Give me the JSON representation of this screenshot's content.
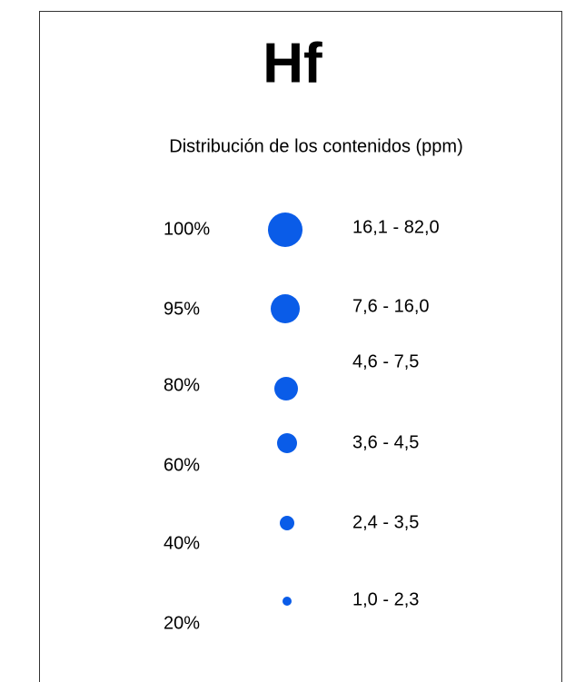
{
  "legend": {
    "title": "Hf",
    "subtitle": "Distribución de los contenidos (ppm)",
    "rows": [
      {
        "percent": "100%",
        "range": "16,1 - 82,0"
      },
      {
        "percent": "95%",
        "range": "7,6 - 16,0"
      },
      {
        "percent": "80%",
        "range": "4,6 - 7,5"
      },
      {
        "percent": "60%",
        "range": "3,6 - 4,5"
      },
      {
        "percent": "40%",
        "range": "2,4 - 3,5"
      },
      {
        "percent": "20%",
        "range": "1,0 - 2,3"
      }
    ]
  }
}
